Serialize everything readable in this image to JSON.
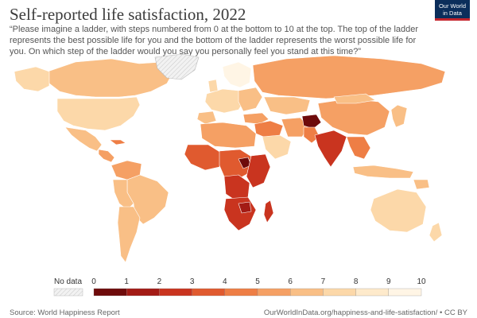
{
  "header": {
    "title": "Self-reported life satisfaction, 2022",
    "subtitle": "“Please imagine a ladder, with steps numbered from 0 at the bottom to 10 at the top. The top of the ladder represents the best possible life for you and the bottom of the ladder represents the worst possible life for you. On which step of the ladder would you say you personally feel you stand at this time?”"
  },
  "logo": {
    "line1": "Our World",
    "line2": "in Data"
  },
  "legend": {
    "no_data_label": "No data",
    "ticks": [
      "0",
      "1",
      "2",
      "3",
      "4",
      "5",
      "6",
      "7",
      "8",
      "9",
      "10"
    ],
    "colors": [
      "#6e0b0b",
      "#a31b15",
      "#c9341f",
      "#e05a2f",
      "#ee7e45",
      "#f5a064",
      "#f9bf86",
      "#fcd8a9",
      "#feeacb",
      "#fff5e5"
    ]
  },
  "colors": {
    "no_data": "#e6e6e6",
    "ocean": "#ffffff"
  },
  "footer": {
    "source": "Source: World Happiness Report",
    "license": "OurWorldInData.org/happiness-and-life-satisfaction/ • CC BY"
  }
}
